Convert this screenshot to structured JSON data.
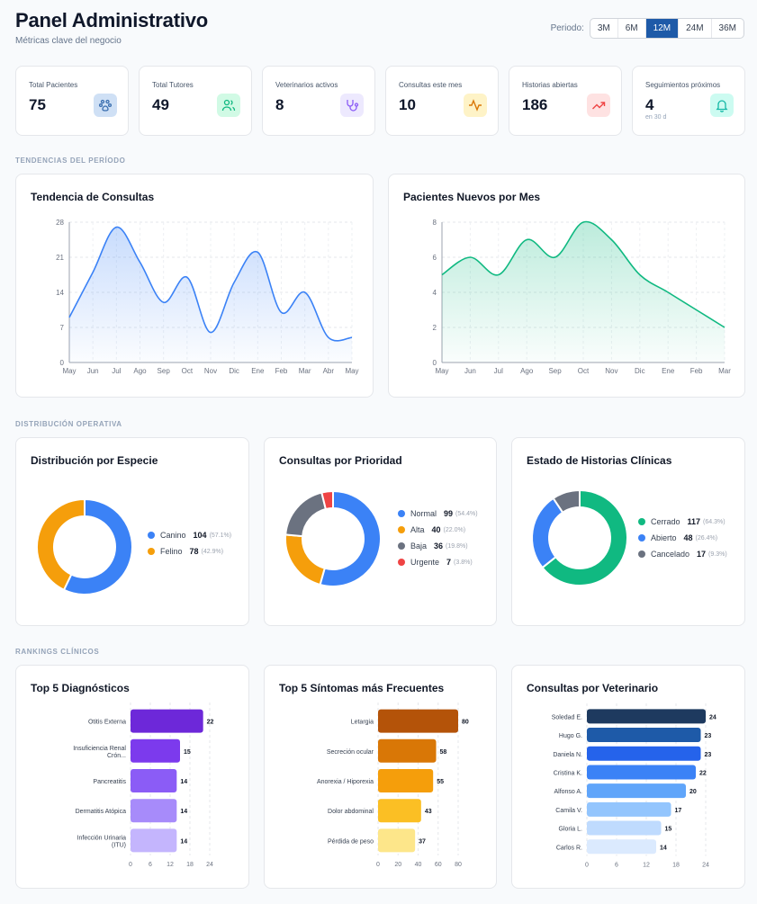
{
  "header": {
    "title": "Panel Administrativo",
    "subtitle": "Métricas clave del negocio"
  },
  "period": {
    "label": "Periodo:",
    "options": [
      "3M",
      "6M",
      "12M",
      "24M",
      "36M"
    ],
    "selected": "12M"
  },
  "colors": {
    "accent": "#1e5aa8"
  },
  "kpis": [
    {
      "label": "Total Pacientes",
      "value": "75",
      "icon": "paw-icon",
      "bg": "#cfe0f5",
      "fg": "#3b6fb0"
    },
    {
      "label": "Total Tutores",
      "value": "49",
      "icon": "users-icon",
      "bg": "#d1fae5",
      "fg": "#10b981"
    },
    {
      "label": "Veterinarios activos",
      "value": "8",
      "icon": "stethoscope-icon",
      "bg": "#ede9fe",
      "fg": "#8b5cf6"
    },
    {
      "label": "Consultas este mes",
      "value": "10",
      "icon": "activity-icon",
      "bg": "#fef3c7",
      "fg": "#d97706"
    },
    {
      "label": "Historias abiertas",
      "value": "186",
      "icon": "trending-up-icon",
      "bg": "#fee2e2",
      "fg": "#ef4444"
    },
    {
      "label": "Seguimientos próximos",
      "value": "4",
      "note": "en 30 d",
      "icon": "bell-icon",
      "bg": "#ccfbf1",
      "fg": "#14b8a6"
    }
  ],
  "sections": {
    "trends": "TENDENCIAS DEL PERÍODO",
    "distribution": "DISTRIBUCIÓN OPERATIVA",
    "rankings": "RANKINGS CLÍNICOS"
  },
  "chart_data": [
    {
      "type": "area",
      "title": "Tendencia de Consultas",
      "x": [
        "May",
        "Jun",
        "Jul",
        "Ago",
        "Sep",
        "Oct",
        "Nov",
        "Dic",
        "Ene",
        "Feb",
        "Mar",
        "Abr",
        "May"
      ],
      "values": [
        9,
        18,
        27,
        20,
        12,
        17,
        6,
        16,
        22,
        10,
        14,
        5,
        5
      ],
      "yticks": [
        0,
        7,
        14,
        21,
        28
      ],
      "ylim": [
        0,
        28
      ],
      "color": "#3b82f6",
      "grid": true
    },
    {
      "type": "area",
      "title": "Pacientes Nuevos por Mes",
      "x": [
        "May",
        "Jun",
        "Jul",
        "Ago",
        "Sep",
        "Oct",
        "Nov",
        "Dic",
        "Ene",
        "Feb",
        "Mar"
      ],
      "values": [
        5,
        6,
        5,
        7,
        6,
        8,
        7,
        5,
        4,
        3,
        2
      ],
      "yticks": [
        0,
        2,
        4,
        6,
        8
      ],
      "ylim": [
        0,
        8
      ],
      "color": "#10b981",
      "grid": true
    },
    {
      "type": "pie",
      "title": "Distribución por Especie",
      "labels": [
        "Canino",
        "Felino"
      ],
      "values": [
        104,
        78
      ],
      "percents": [
        "57.1%",
        "42.9%"
      ],
      "colors": [
        "#3b82f6",
        "#f59e0b"
      ]
    },
    {
      "type": "pie",
      "title": "Consultas por Prioridad",
      "labels": [
        "Normal",
        "Alta",
        "Baja",
        "Urgente"
      ],
      "values": [
        99,
        40,
        36,
        7
      ],
      "percents": [
        "54.4%",
        "22.0%",
        "19.8%",
        "3.8%"
      ],
      "colors": [
        "#3b82f6",
        "#f59e0b",
        "#6b7280",
        "#ef4444"
      ]
    },
    {
      "type": "pie",
      "title": "Estado de Historias Clínicas",
      "labels": [
        "Cerrado",
        "Abierto",
        "Cancelado"
      ],
      "values": [
        117,
        48,
        17
      ],
      "percents": [
        "64.3%",
        "26.4%",
        "9.3%"
      ],
      "colors": [
        "#10b981",
        "#3b82f6",
        "#6b7280"
      ]
    },
    {
      "type": "bar",
      "title": "Top 5 Diagnósticos",
      "categories": [
        "Otitis Externa",
        "Insuficiencia Renal Crón...",
        "Pancreatitis",
        "Dermatitis Atópica",
        "Infección Urinaria (ITU)"
      ],
      "values": [
        22,
        15,
        14,
        14,
        14
      ],
      "xticks": [
        0,
        6,
        12,
        18,
        24
      ],
      "xlim": [
        0,
        24
      ],
      "colors": [
        "#6d28d9",
        "#7c3aed",
        "#8b5cf6",
        "#a78bfa",
        "#c4b5fd"
      ]
    },
    {
      "type": "bar",
      "title": "Top 5 Síntomas más Frecuentes",
      "categories": [
        "Letargia",
        "Secreción ocular",
        "Anorexia / Hiporexia",
        "Dolor abdominal",
        "Pérdida de peso"
      ],
      "values": [
        80,
        58,
        55,
        43,
        37
      ],
      "xticks": [
        0,
        20,
        40,
        60,
        80
      ],
      "xlim": [
        0,
        80
      ],
      "colors": [
        "#b45309",
        "#d97706",
        "#f59e0b",
        "#fbbf24",
        "#fde68a"
      ]
    },
    {
      "type": "bar",
      "title": "Consultas por Veterinario",
      "categories": [
        "Soledad E.",
        "Hugo G.",
        "Daniela N.",
        "Cristina K.",
        "Alfonso A.",
        "Camila V.",
        "Gloria L.",
        "Carlos R."
      ],
      "values": [
        24,
        23,
        23,
        22,
        20,
        17,
        15,
        14
      ],
      "xticks": [
        0,
        6,
        12,
        18,
        24
      ],
      "xlim": [
        0,
        24
      ],
      "colors": [
        "#1e3a5f",
        "#1e5aa8",
        "#2563eb",
        "#3b82f6",
        "#60a5fa",
        "#93c5fd",
        "#bfdbfe",
        "#dbeafe"
      ]
    }
  ]
}
